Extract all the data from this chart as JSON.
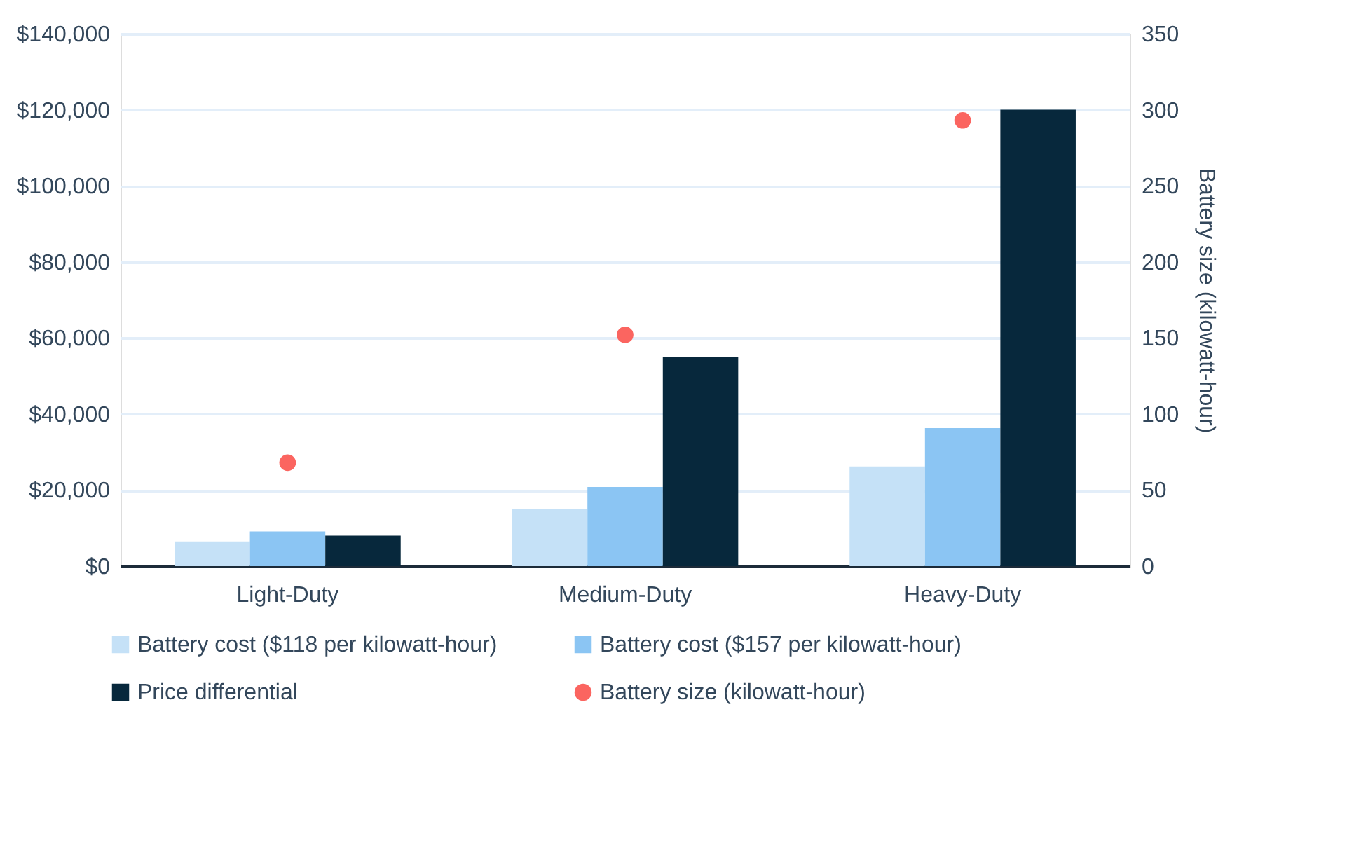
{
  "chart_data": {
    "type": "bar",
    "categories": [
      "Light-Duty",
      "Medium-Duty",
      "Heavy-Duty"
    ],
    "series": [
      {
        "name": "Battery cost ($118 per kilowatt-hour)",
        "color": "#c5e1f7",
        "values": [
          6500,
          15000,
          26200
        ]
      },
      {
        "name": "Battery cost ($157 per kilowatt-hour)",
        "color": "#8bc5f3",
        "values": [
          9100,
          20800,
          36300
        ]
      },
      {
        "name": "Price differential",
        "color": "#07283c",
        "values": [
          8000,
          55100,
          120000
        ]
      },
      {
        "name": "Battery size (kilowatt-hour)",
        "type": "scatter",
        "axis": "y2",
        "marker": "circle",
        "color": "#fb6560",
        "values": [
          68,
          152,
          293
        ]
      }
    ],
    "ylim": [
      0,
      140000
    ],
    "yticks": [
      {
        "value": 0,
        "label": "$0"
      },
      {
        "value": 20000,
        "label": "$20,000"
      },
      {
        "value": 40000,
        "label": "$40,000"
      },
      {
        "value": 60000,
        "label": "$60,000"
      },
      {
        "value": 80000,
        "label": "$80,000"
      },
      {
        "value": 100000,
        "label": "$100,000"
      },
      {
        "value": 120000,
        "label": "$120,000"
      },
      {
        "value": 140000,
        "label": "$140,000"
      }
    ],
    "y2label": "Battery size (kilowatt-hour)",
    "y2lim": [
      0,
      350
    ],
    "y2ticks": [
      0,
      50,
      100,
      150,
      200,
      250,
      300,
      350
    ],
    "grid": "y",
    "legend": "bottom"
  }
}
